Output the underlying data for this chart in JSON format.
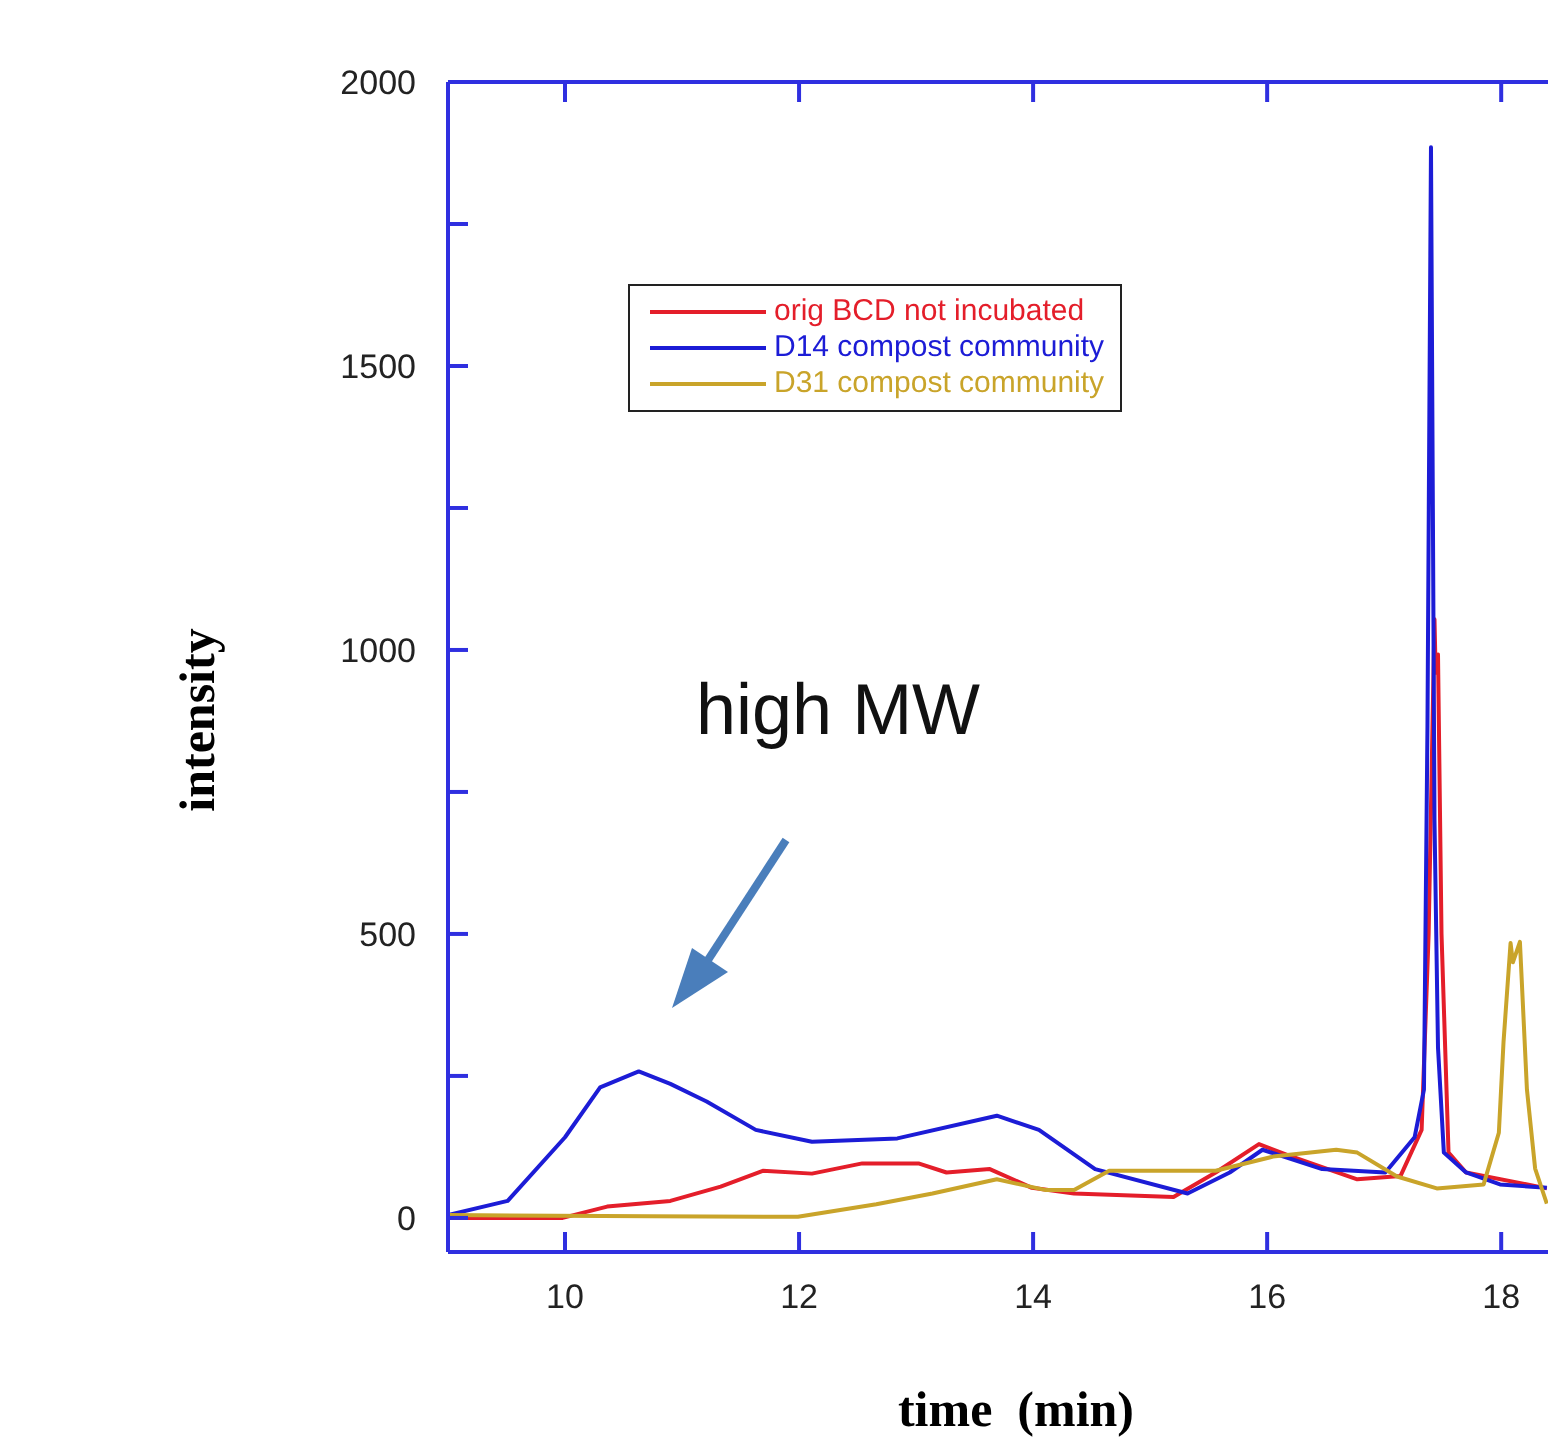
{
  "chart_data": {
    "type": "line",
    "xlabel": "time  (min)",
    "ylabel": "intensity",
    "annotations": [
      "high MW"
    ],
    "xlim": [
      9,
      18.4
    ],
    "xticks": [
      10,
      12,
      14,
      16,
      18
    ],
    "ylim": [
      -60,
      2000
    ],
    "yticks": [
      0,
      {
        "value": 250,
        "label": null
      },
      500,
      {
        "value": 750,
        "label": null
      },
      1000,
      {
        "value": 1250,
        "label": null
      },
      1500,
      {
        "value": 1750,
        "label": null
      },
      2000
    ],
    "grid": false,
    "legend": "top left",
    "marker": "none",
    "line_style": "solid",
    "series": [
      {
        "name": "orig BCD not incubated",
        "color": "#e41e2a",
        "x": [
          9.0,
          9.98,
          10.36,
          10.9,
          11.33,
          11.69,
          12.11,
          12.54,
          13.02,
          13.26,
          13.63,
          13.99,
          14.35,
          15.2,
          15.56,
          15.93,
          16.17,
          16.77,
          17.14,
          17.32,
          17.38,
          17.43,
          17.44,
          17.46,
          17.49,
          17.55,
          17.7,
          18.39
        ],
        "values": [
          0,
          0,
          20,
          30,
          55,
          83,
          78,
          96,
          96,
          80,
          86,
          53,
          43,
          37,
          80,
          130,
          111,
          68,
          74,
          155,
          500,
          1054,
          960,
          992,
          500,
          115,
          80,
          52
        ]
      },
      {
        "name": "D14 compost community",
        "color": "#1c1cd6",
        "x": [
          9.0,
          9.51,
          10.0,
          10.3,
          10.63,
          10.9,
          11.21,
          11.63,
          12.11,
          12.84,
          13.69,
          14.05,
          14.53,
          15.32,
          15.68,
          15.96,
          16.47,
          17.01,
          17.26,
          17.34,
          17.37,
          17.4,
          17.43,
          17.46,
          17.51,
          17.7,
          17.99,
          18.39
        ],
        "values": [
          5,
          30,
          142,
          230,
          258,
          236,
          205,
          155,
          134,
          140,
          180,
          155,
          86,
          43,
          80,
          120,
          86,
          80,
          142,
          226,
          866,
          1885,
          700,
          300,
          115,
          80,
          59,
          53
        ]
      },
      {
        "name": "D31 compost community",
        "color": "#c9a42a",
        "x": [
          9.0,
          10.72,
          11.99,
          12.66,
          13.14,
          13.69,
          14.11,
          14.35,
          14.65,
          15.56,
          16.05,
          16.59,
          16.77,
          17.11,
          17.45,
          17.85,
          17.98,
          18.02,
          18.08,
          18.1,
          18.16,
          18.22,
          18.29,
          18.39
        ],
        "values": [
          5,
          3,
          2,
          24,
          43,
          68,
          49,
          49,
          83,
          83,
          108,
          120,
          115,
          73,
          52,
          59,
          150,
          310,
          484,
          450,
          486,
          226,
          87,
          25
        ]
      }
    ]
  }
}
